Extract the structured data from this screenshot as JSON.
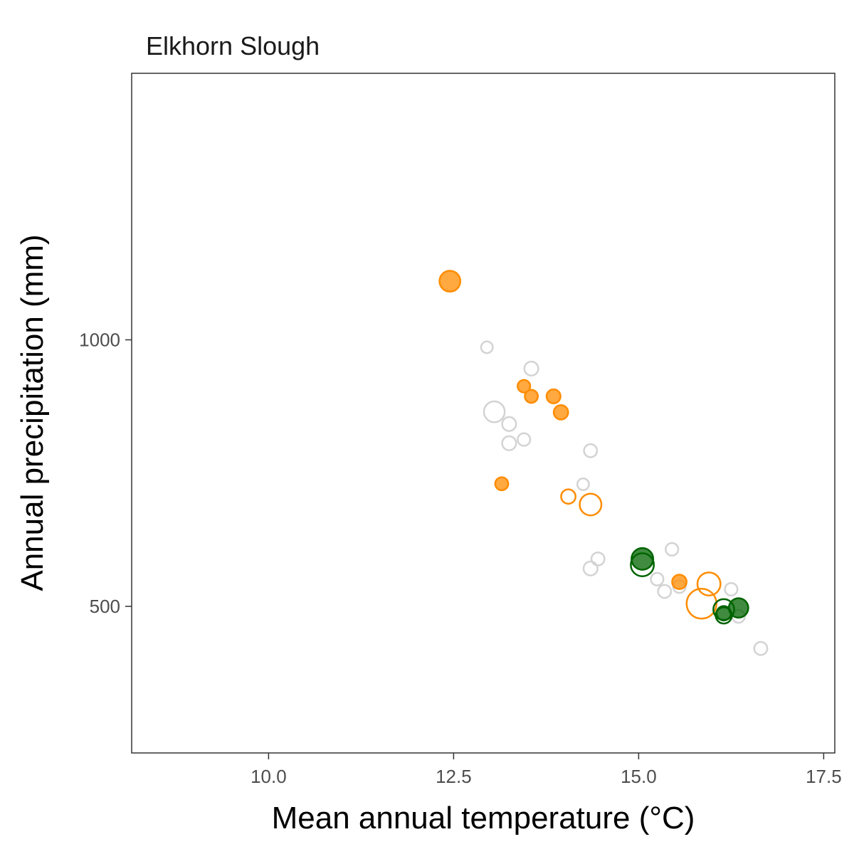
{
  "chart_data": {
    "type": "scatter",
    "title": "Elkhorn Slough",
    "xlabel": "Mean annual temperature (°C)",
    "ylabel": "Annual precipitation (mm)",
    "xlim": [
      8.15,
      17.65
    ],
    "ylim": [
      225,
      1500
    ],
    "x_ticks": [
      10.0,
      12.5,
      15.0,
      17.5
    ],
    "x_tick_labels": [
      "10.0",
      "12.5",
      "15.0",
      "17.5"
    ],
    "y_ticks": [
      500,
      1000
    ],
    "y_tick_labels": [
      "500",
      "1000"
    ],
    "grid": false,
    "legend": "none",
    "colors": {
      "grey": "#d3d3d3",
      "orange": "#ff8c00",
      "green": "#006400"
    },
    "points": [
      {
        "x": 12.95,
        "y": 986,
        "color": "grey",
        "filled": false,
        "size": 1
      },
      {
        "x": 13.55,
        "y": 946,
        "color": "grey",
        "filled": false,
        "size": 1.5
      },
      {
        "x": 13.05,
        "y": 865,
        "color": "grey",
        "filled": false,
        "size": 3
      },
      {
        "x": 13.25,
        "y": 842,
        "color": "grey",
        "filled": false,
        "size": 1.5
      },
      {
        "x": 13.45,
        "y": 813,
        "color": "grey",
        "filled": false,
        "size": 1.2
      },
      {
        "x": 13.25,
        "y": 806,
        "color": "grey",
        "filled": false,
        "size": 1.5
      },
      {
        "x": 14.35,
        "y": 792,
        "color": "grey",
        "filled": false,
        "size": 1.3
      },
      {
        "x": 14.25,
        "y": 729,
        "color": "grey",
        "filled": false,
        "size": 1
      },
      {
        "x": 15.45,
        "y": 607,
        "color": "grey",
        "filled": false,
        "size": 1.2
      },
      {
        "x": 14.45,
        "y": 589,
        "color": "grey",
        "filled": false,
        "size": 1.3
      },
      {
        "x": 14.35,
        "y": 571,
        "color": "grey",
        "filled": false,
        "size": 1.5
      },
      {
        "x": 15.25,
        "y": 551,
        "color": "grey",
        "filled": false,
        "size": 1.2
      },
      {
        "x": 15.35,
        "y": 528,
        "color": "grey",
        "filled": false,
        "size": 1.3
      },
      {
        "x": 16.25,
        "y": 532,
        "color": "grey",
        "filled": false,
        "size": 1.2
      },
      {
        "x": 15.55,
        "y": 537,
        "color": "grey",
        "filled": false,
        "size": 1.2
      },
      {
        "x": 16.35,
        "y": 481,
        "color": "grey",
        "filled": false,
        "size": 1.2
      },
      {
        "x": 16.65,
        "y": 421,
        "color": "grey",
        "filled": false,
        "size": 1.3
      },
      {
        "x": 12.45,
        "y": 1110,
        "color": "orange",
        "filled": true,
        "size": 3
      },
      {
        "x": 13.45,
        "y": 913,
        "color": "orange",
        "filled": true,
        "size": 1.2
      },
      {
        "x": 13.55,
        "y": 894,
        "color": "orange",
        "filled": true,
        "size": 1.3
      },
      {
        "x": 13.85,
        "y": 894,
        "color": "orange",
        "filled": true,
        "size": 1.5
      },
      {
        "x": 13.95,
        "y": 864,
        "color": "orange",
        "filled": true,
        "size": 1.6
      },
      {
        "x": 13.15,
        "y": 730,
        "color": "orange",
        "filled": true,
        "size": 1.3
      },
      {
        "x": 14.05,
        "y": 706,
        "color": "orange",
        "filled": false,
        "size": 1.6
      },
      {
        "x": 14.35,
        "y": 691,
        "color": "orange",
        "filled": false,
        "size": 3.2
      },
      {
        "x": 15.55,
        "y": 546,
        "color": "orange",
        "filled": true,
        "size": 1.6
      },
      {
        "x": 15.95,
        "y": 542,
        "color": "orange",
        "filled": false,
        "size": 3.5
      },
      {
        "x": 15.85,
        "y": 505,
        "color": "orange",
        "filled": false,
        "size": 5
      },
      {
        "x": 15.05,
        "y": 589,
        "color": "green",
        "filled": true,
        "size": 3.2
      },
      {
        "x": 15.05,
        "y": 578,
        "color": "green",
        "filled": false,
        "size": 3.5
      },
      {
        "x": 16.15,
        "y": 494,
        "color": "green",
        "filled": false,
        "size": 3
      },
      {
        "x": 16.35,
        "y": 497,
        "color": "green",
        "filled": true,
        "size": 2.7
      },
      {
        "x": 16.15,
        "y": 483,
        "color": "green",
        "filled": false,
        "size": 2
      },
      {
        "x": 16.15,
        "y": 487,
        "color": "green",
        "filled": true,
        "size": 1.6
      }
    ]
  }
}
